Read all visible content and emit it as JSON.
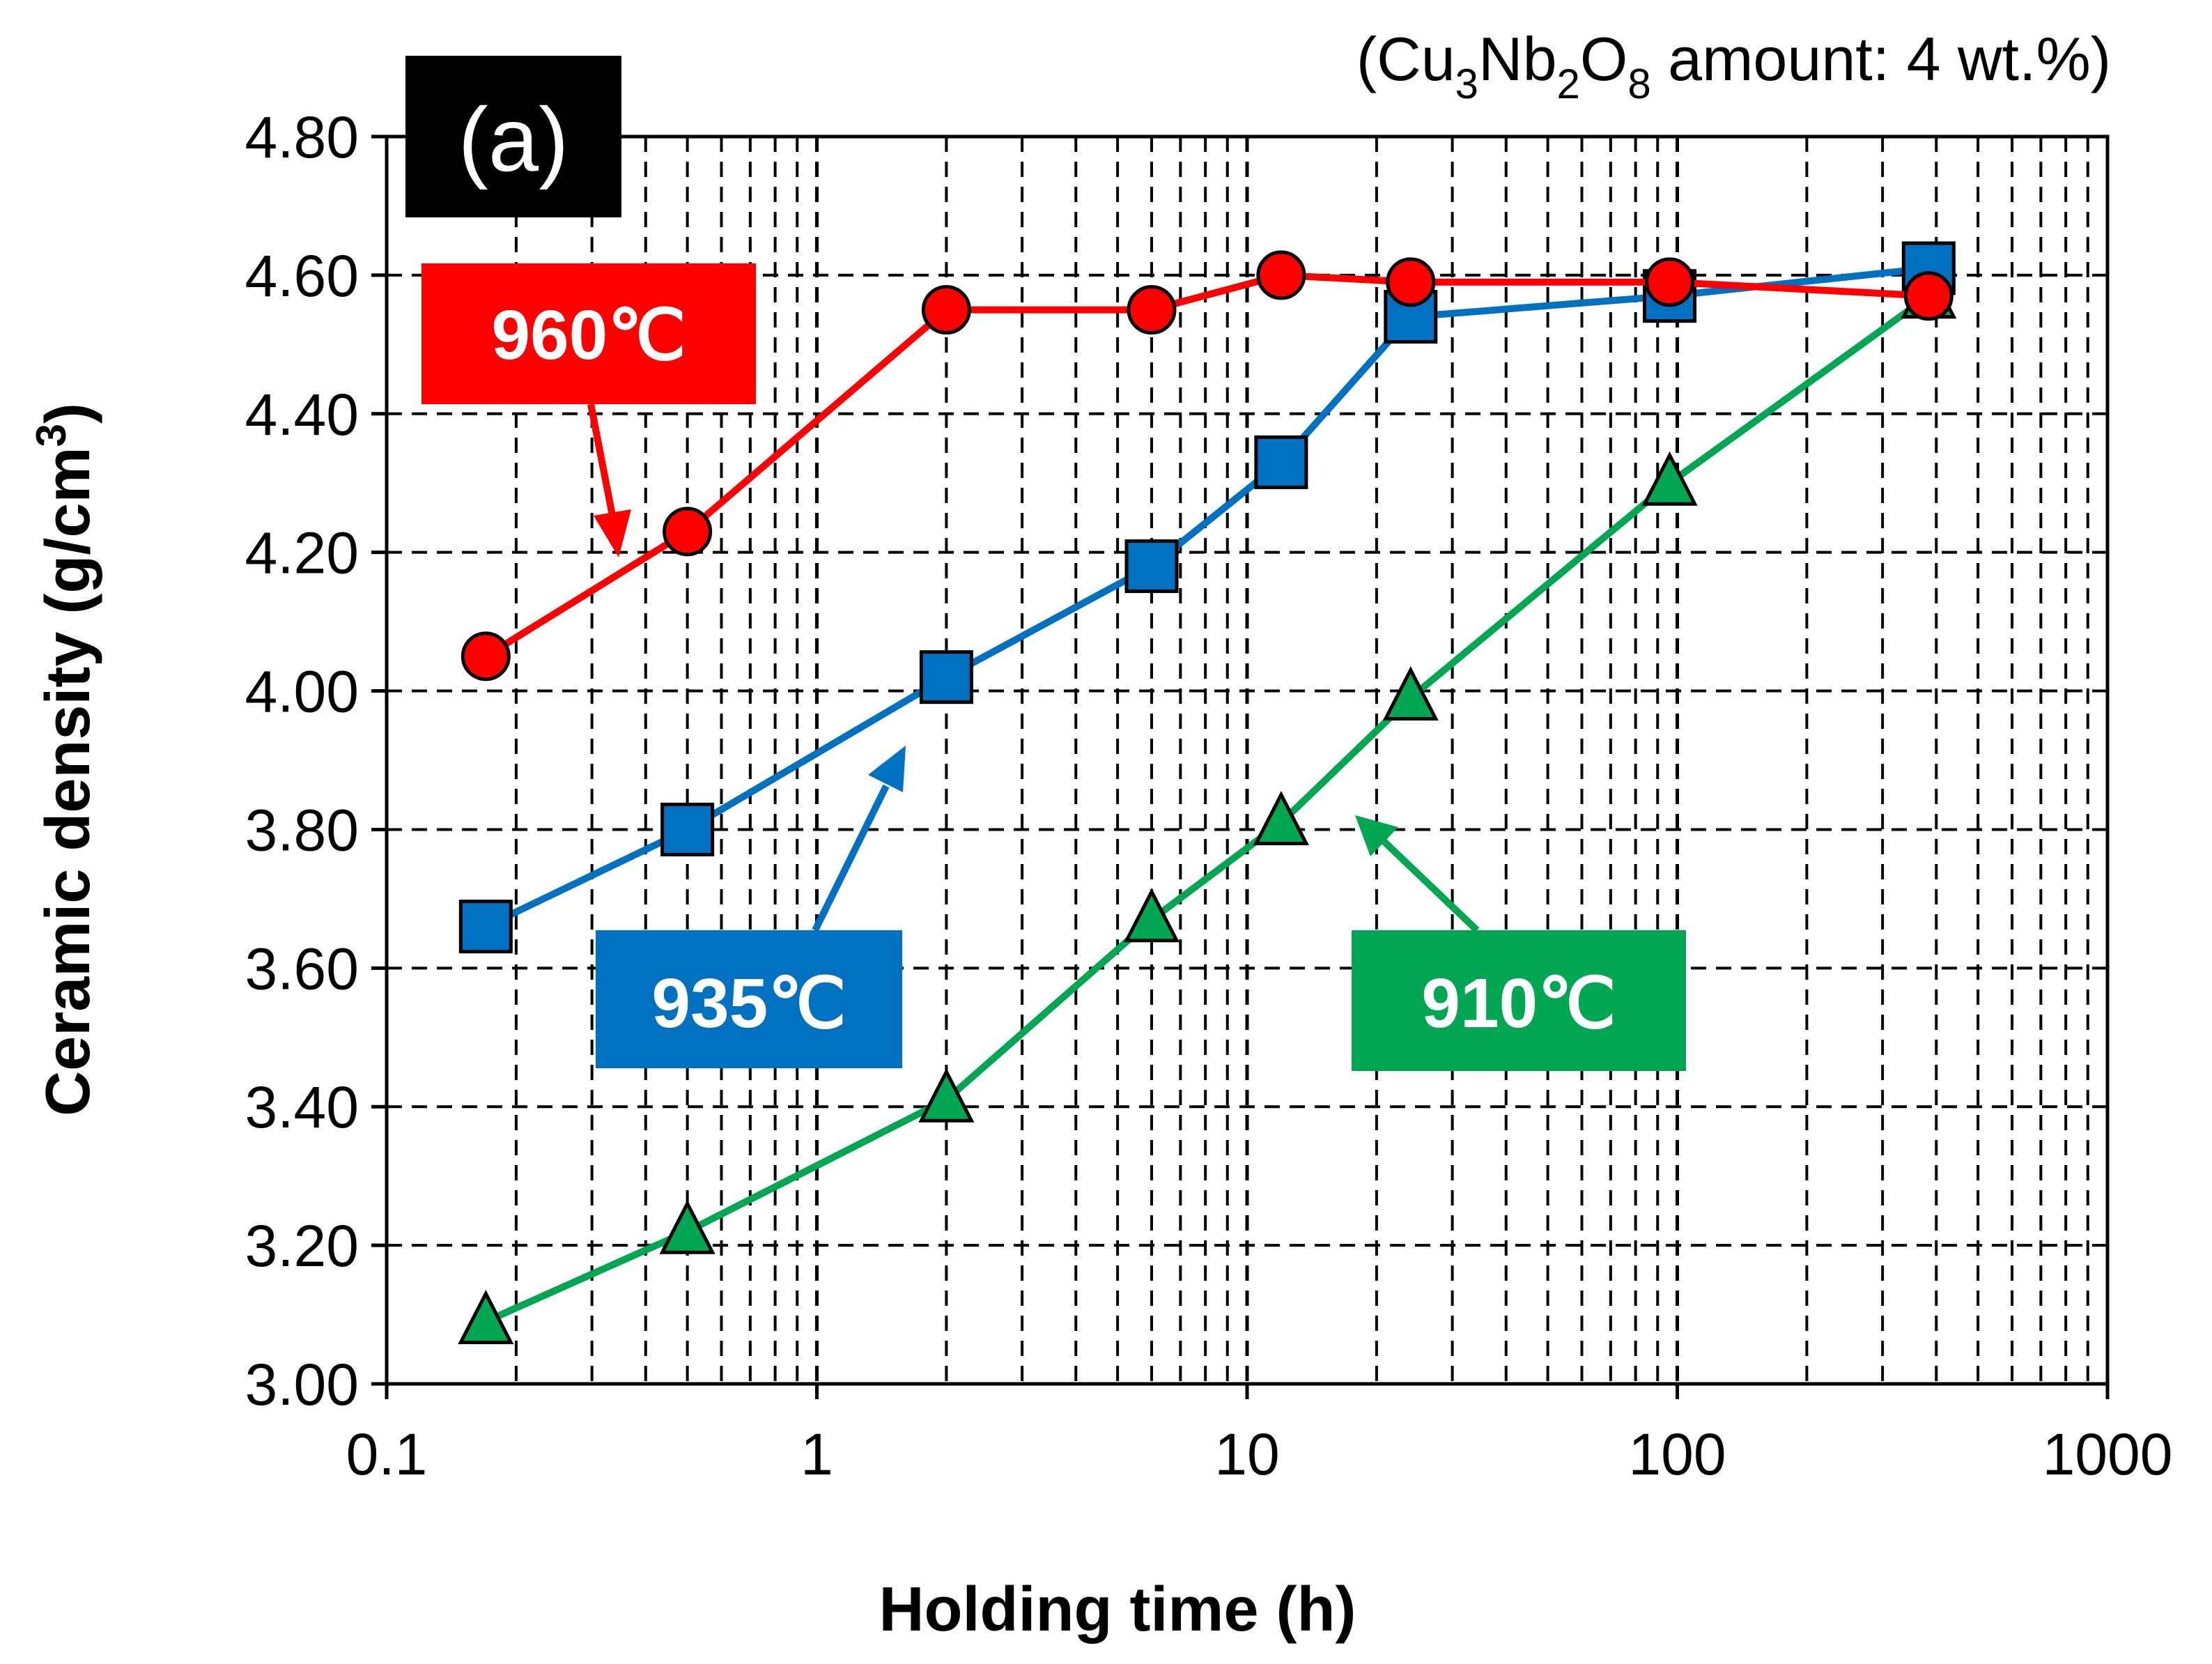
{
  "chart_data": {
    "type": "line",
    "panel_label": "(a)",
    "note": {
      "prefix": "(Cu",
      "sub1": "3",
      "mid1": "Nb",
      "sub2": "2",
      "mid2": "O",
      "sub3": "8",
      "suffix": " amount: 4 wt.%)"
    },
    "xlabel": "Holding time (h)",
    "ylabel": "Ceramic density (g/cm",
    "ylabel_sup": "3",
    "ylabel_close": ")",
    "xscale": "log",
    "xlim": [
      0.1,
      1000
    ],
    "ylim": [
      3.0,
      4.8
    ],
    "xticks": [
      0.1,
      1,
      10,
      100,
      1000
    ],
    "xtick_labels": [
      "0.1",
      "1",
      "10",
      "100",
      "1000"
    ],
    "yticks": [
      3.0,
      3.2,
      3.4,
      3.6,
      3.8,
      4.0,
      4.2,
      4.4,
      4.6,
      4.8
    ],
    "ytick_labels": [
      "3.00",
      "3.20",
      "3.40",
      "3.60",
      "3.80",
      "4.00",
      "4.20",
      "4.40",
      "4.60",
      "4.80"
    ],
    "grid": true,
    "series": [
      {
        "name": "910℃",
        "marker": "triangle",
        "color": "#00A651",
        "x": [
          0.17,
          0.5,
          2,
          6,
          12,
          24,
          96,
          384
        ],
        "y": [
          3.09,
          3.22,
          3.41,
          3.67,
          3.81,
          3.99,
          4.3,
          4.57
        ]
      },
      {
        "name": "935℃",
        "marker": "square",
        "color": "#0070C0",
        "x": [
          0.17,
          0.5,
          2,
          6,
          12,
          24,
          96,
          384
        ],
        "y": [
          3.66,
          3.8,
          4.02,
          4.18,
          4.33,
          4.54,
          4.57,
          4.61
        ]
      },
      {
        "name": "960℃",
        "marker": "circle",
        "color": "#FF0000",
        "x": [
          0.17,
          0.5,
          2,
          6,
          12,
          24,
          96,
          384
        ],
        "y": [
          4.05,
          4.23,
          4.55,
          4.55,
          4.6,
          4.59,
          4.59,
          4.57
        ]
      }
    ],
    "callouts": [
      {
        "label": "960℃",
        "color": "#FF0000"
      },
      {
        "label": "935℃",
        "color": "#0070C0"
      },
      {
        "label": "910℃",
        "color": "#00A651"
      }
    ]
  }
}
